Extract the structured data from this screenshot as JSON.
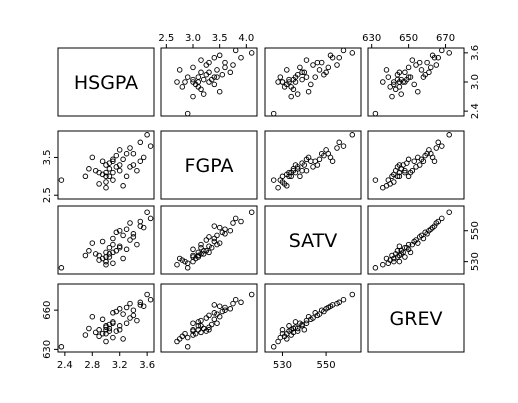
{
  "chart_data": {
    "type": "scatter",
    "variables": [
      "HSGPA",
      "FGPA",
      "SATV",
      "GREV"
    ],
    "ranges": {
      "HSGPA": [
        2.3,
        3.7
      ],
      "FGPA": [
        2.4,
        4.2
      ],
      "SATV": [
        522,
        566
      ],
      "GREV": [
        628,
        680
      ]
    },
    "axis_ticks": {
      "HSGPA": [
        {
          "v": 2.4,
          "l": "2.4"
        },
        {
          "v": 2.8,
          "l": "2.8"
        },
        {
          "v": 3.2,
          "l": "3.2"
        },
        {
          "v": 3.6,
          "l": "3.6"
        }
      ],
      "FGPA": [
        {
          "v": 2.5,
          "l": "2.5"
        },
        {
          "v": 3.0,
          "l": "3.0"
        },
        {
          "v": 3.5,
          "l": "3.5"
        },
        {
          "v": 4.0,
          "l": "4.0"
        }
      ],
      "SATV": [
        {
          "v": 530,
          "l": "530"
        },
        {
          "v": 550,
          "l": "550"
        }
      ],
      "GREV": [
        {
          "v": 630,
          "l": "630"
        },
        {
          "v": 650,
          "l": "650"
        },
        {
          "v": 670,
          "l": "670"
        }
      ]
    },
    "left_ticks": {
      "HSGPA": [
        {
          "v": 2.4,
          "l": "2.4"
        },
        {
          "v": 3.0,
          "l": "3.0"
        },
        {
          "v": 3.6,
          "l": "3.6"
        }
      ],
      "FGPA": [
        {
          "v": 2.5,
          "l": "2.5"
        },
        {
          "v": 3.5,
          "l": "3.5"
        }
      ],
      "SATV": [
        {
          "v": 530,
          "l": "530"
        },
        {
          "v": 550,
          "l": "550"
        }
      ],
      "GREV": [
        {
          "v": 630,
          "l": "630"
        },
        {
          "v": 660,
          "l": "660"
        }
      ]
    },
    "points": [
      {
        "HSGPA": 3.2,
        "FGPA": 3.3,
        "SATV": 540,
        "GREV": 645
      },
      {
        "HSGPA": 3.6,
        "FGPA": 4.1,
        "SATV": 562,
        "GREV": 672
      },
      {
        "HSGPA": 2.35,
        "FGPA": 2.9,
        "SATV": 526,
        "GREV": 632
      },
      {
        "HSGPA": 3.0,
        "FGPA": 3.1,
        "SATV": 533,
        "GREV": 648
      },
      {
        "HSGPA": 3.1,
        "FGPA": 3.4,
        "SATV": 545,
        "GREV": 658
      },
      {
        "HSGPA": 2.9,
        "FGPA": 2.8,
        "SATV": 531,
        "GREV": 640
      },
      {
        "HSGPA": 3.4,
        "FGPA": 3.6,
        "SATV": 548,
        "GREV": 660
      },
      {
        "HSGPA": 3.05,
        "FGPA": 3.2,
        "SATV": 535,
        "GREV": 646
      },
      {
        "HSGPA": 3.3,
        "FGPA": 3.0,
        "SATV": 538,
        "GREV": 650
      },
      {
        "HSGPA": 2.8,
        "FGPA": 3.5,
        "SATV": 542,
        "GREV": 655
      },
      {
        "HSGPA": 3.5,
        "FGPA": 3.9,
        "SATV": 556,
        "GREV": 666
      },
      {
        "HSGPA": 3.0,
        "FGPA": 2.7,
        "SATV": 528,
        "GREV": 636
      },
      {
        "HSGPA": 3.15,
        "FGPA": 3.25,
        "SATV": 537,
        "GREV": 644
      },
      {
        "HSGPA": 2.95,
        "FGPA": 3.05,
        "SATV": 532,
        "GREV": 642
      },
      {
        "HSGPA": 3.25,
        "FGPA": 3.45,
        "SATV": 547,
        "GREV": 657
      },
      {
        "HSGPA": 3.45,
        "FGPA": 3.15,
        "SATV": 541,
        "GREV": 652
      },
      {
        "HSGPA": 3.0,
        "FGPA": 3.3,
        "SATV": 536,
        "GREV": 647
      },
      {
        "HSGPA": 2.7,
        "FGPA": 3.0,
        "SATV": 534,
        "GREV": 641
      },
      {
        "HSGPA": 3.55,
        "FGPA": 3.5,
        "SATV": 552,
        "GREV": 663
      },
      {
        "HSGPA": 3.1,
        "FGPA": 2.9,
        "SATV": 529,
        "GREV": 639
      },
      {
        "HSGPA": 3.2,
        "FGPA": 3.7,
        "SATV": 550,
        "GREV": 661
      },
      {
        "HSGPA": 3.05,
        "FGPA": 3.35,
        "SATV": 539,
        "GREV": 649
      },
      {
        "HSGPA": 3.35,
        "FGPA": 3.25,
        "SATV": 544,
        "GREV": 654
      },
      {
        "HSGPA": 2.85,
        "FGPA": 3.15,
        "SATV": 535,
        "GREV": 643
      },
      {
        "HSGPA": 3.0,
        "FGPA": 3.0,
        "SATV": 530,
        "GREV": 645
      },
      {
        "HSGPA": 3.65,
        "FGPA": 3.8,
        "SATV": 558,
        "GREV": 668
      },
      {
        "HSGPA": 3.1,
        "FGPA": 3.1,
        "SATV": 536,
        "GREV": 651
      },
      {
        "HSGPA": 3.25,
        "FGPA": 2.75,
        "SATV": 532,
        "GREV": 638
      },
      {
        "HSGPA": 2.95,
        "FGPA": 3.4,
        "SATV": 543,
        "GREV": 653
      },
      {
        "HSGPA": 3.4,
        "FGPA": 3.3,
        "SATV": 546,
        "GREV": 656
      },
      {
        "HSGPA": 3.05,
        "FGPA": 3.0,
        "SATV": 533,
        "GREV": 644
      },
      {
        "HSGPA": 3.15,
        "FGPA": 3.55,
        "SATV": 549,
        "GREV": 659
      },
      {
        "HSGPA": 2.75,
        "FGPA": 3.2,
        "SATV": 537,
        "GREV": 646
      },
      {
        "HSGPA": 3.3,
        "FGPA": 3.6,
        "SATV": 551,
        "GREV": 662
      },
      {
        "HSGPA": 3.0,
        "FGPA": 2.85,
        "SATV": 530,
        "GREV": 642
      },
      {
        "HSGPA": 3.2,
        "FGPA": 3.15,
        "SATV": 539,
        "GREV": 648
      },
      {
        "HSGPA": 3.5,
        "FGPA": 3.4,
        "SATV": 553,
        "GREV": 664
      },
      {
        "HSGPA": 3.1,
        "FGPA": 3.45,
        "SATV": 541,
        "GREV": 650
      },
      {
        "HSGPA": 2.9,
        "FGPA": 3.1,
        "SATV": 534,
        "GREV": 645
      },
      {
        "HSGPA": 3.35,
        "FGPA": 3.75,
        "SATV": 555,
        "GREV": 665
      }
    ]
  }
}
